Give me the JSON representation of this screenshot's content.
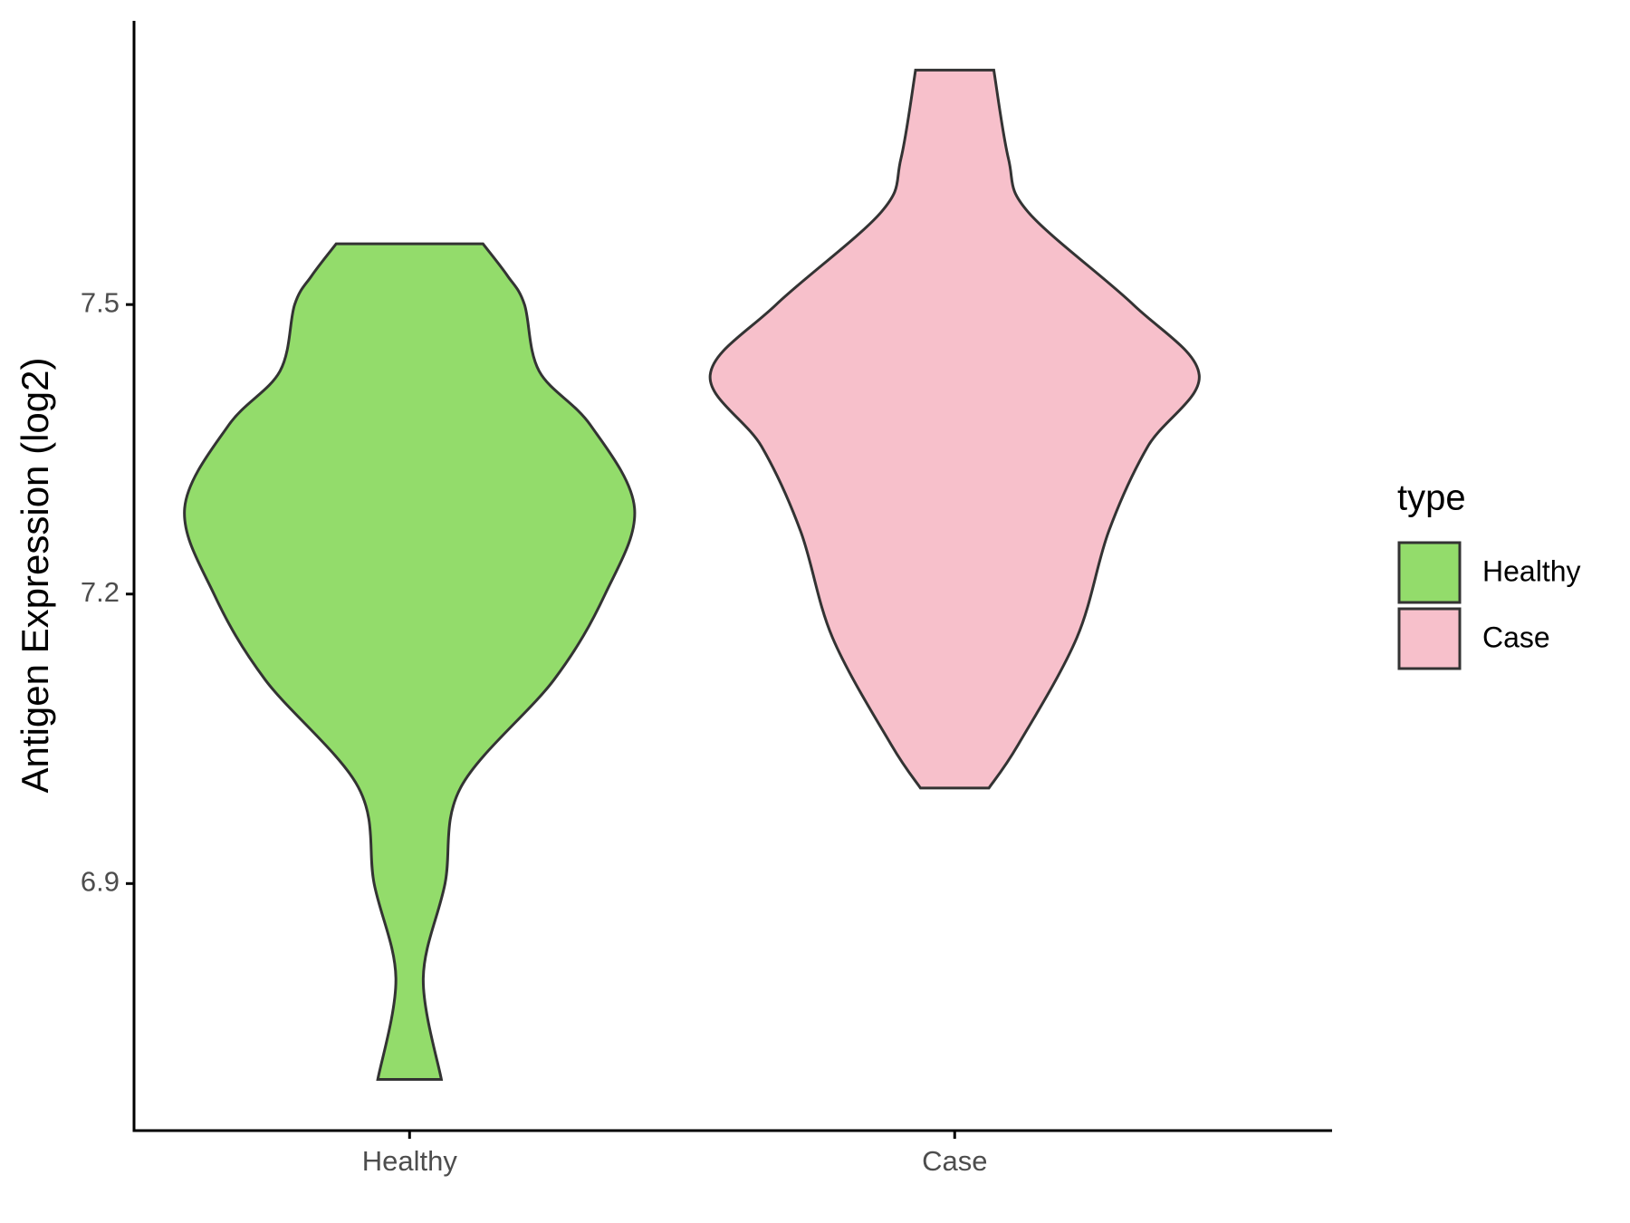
{
  "chart_data": {
    "type": "violin",
    "y_label": "Antigen Expression (log2)",
    "categories": [
      "Healthy",
      "Case"
    ],
    "ylim": [
      6.644,
      7.794
    ],
    "yticks": [
      6.9,
      7.2,
      7.5
    ],
    "legend_title": "type",
    "legend_position": "right",
    "series": [
      {
        "name": "Healthy",
        "color": "#93dc6b",
        "y": [
          7.563,
          7.53,
          7.5,
          7.431,
          7.375,
          7.289,
          7.2,
          7.111,
          7.0,
          6.9,
          6.802,
          6.697
        ],
        "width": [
          0.3,
          0.4,
          0.47,
          0.53,
          0.74,
          0.92,
          0.8,
          0.59,
          0.21,
          0.145,
          0.056,
          0.13
        ]
      },
      {
        "name": "Case",
        "color": "#f7c0cb",
        "y": [
          7.743,
          7.651,
          7.596,
          7.5,
          7.427,
          7.353,
          7.265,
          7.155,
          7.044,
          6.999
        ],
        "width": [
          0.16,
          0.22,
          0.3,
          0.73,
          1.0,
          0.79,
          0.63,
          0.5,
          0.26,
          0.14
        ]
      }
    ]
  }
}
